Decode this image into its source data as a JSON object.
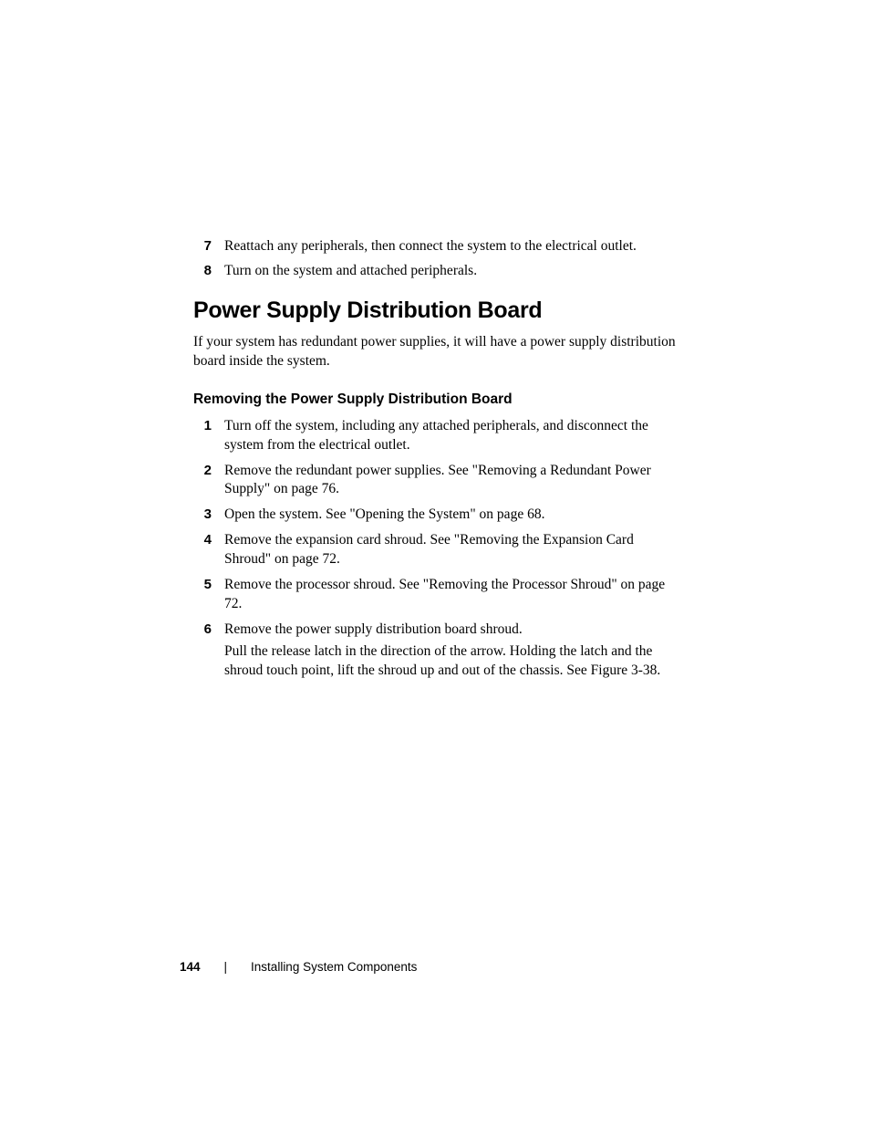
{
  "top_steps": [
    {
      "num": "7",
      "text": "Reattach any peripherals, then connect the system to the electrical outlet."
    },
    {
      "num": "8",
      "text": "Turn on the system and attached peripherals."
    }
  ],
  "section": {
    "heading": "Power Supply Distribution Board",
    "intro": "If your system has redundant power supplies, it will have a power supply distribution board inside the system."
  },
  "subsection": {
    "heading": "Removing the Power Supply Distribution Board",
    "steps": [
      {
        "num": "1",
        "paragraphs": [
          "Turn off the system, including any attached peripherals, and disconnect the system from the electrical outlet."
        ]
      },
      {
        "num": "2",
        "paragraphs": [
          "Remove the redundant power supplies. See \"Removing a Redundant Power Supply\" on page 76."
        ]
      },
      {
        "num": "3",
        "paragraphs": [
          "Open the system. See \"Opening the System\" on page 68."
        ]
      },
      {
        "num": "4",
        "paragraphs": [
          "Remove the expansion card shroud. See \"Removing the Expansion Card Shroud\" on page 72."
        ]
      },
      {
        "num": "5",
        "paragraphs": [
          "Remove the processor shroud. See \"Removing the Processor Shroud\" on page 72."
        ]
      },
      {
        "num": "6",
        "paragraphs": [
          "Remove the power supply distribution board shroud.",
          "Pull the release latch in the direction of the arrow. Holding the latch and the shroud touch point, lift the shroud up and out of the chassis. See Figure 3-38."
        ]
      }
    ]
  },
  "footer": {
    "page_number": "144",
    "divider": "|",
    "section_name": "Installing System Components"
  }
}
